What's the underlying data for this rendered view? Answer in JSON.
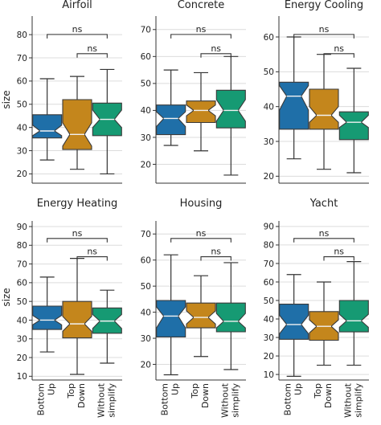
{
  "colors": {
    "bottom_up": "#1f6fa8",
    "top_down": "#c4861c",
    "without_simplify": "#169a73",
    "grid": "#dcdcdc",
    "axis": "#333333"
  },
  "ylabel": "size",
  "categories": [
    [
      "Bottom",
      "Up"
    ],
    [
      "Top",
      "Down"
    ],
    [
      "Without",
      "simplify"
    ]
  ],
  "chart_data": [
    {
      "type": "boxplot",
      "title": "Airfoil",
      "ylim": [
        16,
        88
      ],
      "yticks": [
        20,
        30,
        40,
        50,
        60,
        70,
        80
      ],
      "annotations": [
        "ns",
        "ns"
      ],
      "boxes": [
        {
          "category": "Bottom Up",
          "min": 26,
          "q1": 35.5,
          "median": 38.5,
          "q3": 45.5,
          "max": 61,
          "notch_lo": 36.5,
          "notch_hi": 41
        },
        {
          "category": "Top Down",
          "min": 22,
          "q1": 30.5,
          "median": 37,
          "q3": 52,
          "max": 62,
          "notch_lo": 32,
          "notch_hi": 42
        },
        {
          "category": "Without simplify",
          "min": 20,
          "q1": 36.5,
          "median": 43.5,
          "q3": 50.5,
          "max": 65,
          "notch_lo": 40,
          "notch_hi": 47.5
        }
      ]
    },
    {
      "type": "boxplot",
      "title": "Concrete",
      "ylim": [
        13,
        75
      ],
      "yticks": [
        20,
        30,
        40,
        50,
        60,
        70
      ],
      "annotations": [
        "ns",
        "ns"
      ],
      "boxes": [
        {
          "category": "Bottom Up",
          "min": 27,
          "q1": 31,
          "median": 37,
          "q3": 42,
          "max": 55,
          "notch_lo": 34,
          "notch_hi": 39.5
        },
        {
          "category": "Top Down",
          "min": 25,
          "q1": 35.5,
          "median": 40,
          "q3": 43.5,
          "max": 54,
          "notch_lo": 38,
          "notch_hi": 42
        },
        {
          "category": "Without simplify",
          "min": 16,
          "q1": 33.5,
          "median": 40,
          "q3": 47.5,
          "max": 60,
          "notch_lo": 36,
          "notch_hi": 44
        }
      ]
    },
    {
      "type": "boxplot",
      "title": "Energy Cooling",
      "ylim": [
        18,
        66
      ],
      "yticks": [
        20,
        30,
        40,
        50,
        60
      ],
      "annotations": [
        "ns",
        "ns"
      ],
      "boxes": [
        {
          "category": "Bottom Up",
          "min": 25,
          "q1": 33.5,
          "median": 43,
          "q3": 47,
          "max": 60,
          "notch_lo": 39,
          "notch_hi": 46
        },
        {
          "category": "Top Down",
          "min": 22,
          "q1": 33.5,
          "median": 37.5,
          "q3": 45,
          "max": 55,
          "notch_lo": 35.5,
          "notch_hi": 40
        },
        {
          "category": "Without simplify",
          "min": 21,
          "q1": 30.5,
          "median": 35.5,
          "q3": 38.5,
          "max": 51,
          "notch_lo": 34,
          "notch_hi": 37.5
        }
      ]
    },
    {
      "type": "boxplot",
      "title": "Energy Heating",
      "ylim": [
        8,
        93
      ],
      "yticks": [
        10,
        20,
        30,
        40,
        50,
        60,
        70,
        80,
        90
      ],
      "annotations": [
        "ns",
        "ns"
      ],
      "boxes": [
        {
          "category": "Bottom Up",
          "min": 23,
          "q1": 35,
          "median": 40,
          "q3": 47.5,
          "max": 63,
          "notch_lo": 37.5,
          "notch_hi": 42.5
        },
        {
          "category": "Top Down",
          "min": 11,
          "q1": 30.5,
          "median": 38,
          "q3": 50,
          "max": 73,
          "notch_lo": 34,
          "notch_hi": 42
        },
        {
          "category": "Without simplify",
          "min": 17,
          "q1": 33,
          "median": 39.5,
          "q3": 46.5,
          "max": 56,
          "notch_lo": 35.5,
          "notch_hi": 43
        }
      ]
    },
    {
      "type": "boxplot",
      "title": "Housing",
      "ylim": [
        14,
        75
      ],
      "yticks": [
        20,
        30,
        40,
        50,
        60,
        70
      ],
      "annotations": [
        "ns",
        "ns"
      ],
      "boxes": [
        {
          "category": "Bottom Up",
          "min": 16,
          "q1": 30.5,
          "median": 38.5,
          "q3": 44.5,
          "max": 62,
          "notch_lo": 34,
          "notch_hi": 42
        },
        {
          "category": "Top Down",
          "min": 23,
          "q1": 34,
          "median": 38,
          "q3": 43.5,
          "max": 54,
          "notch_lo": 35.5,
          "notch_hi": 40.5
        },
        {
          "category": "Without simplify",
          "min": 18,
          "q1": 32.5,
          "median": 36.5,
          "q3": 43.5,
          "max": 59,
          "notch_lo": 34,
          "notch_hi": 39.5
        }
      ]
    },
    {
      "type": "boxplot",
      "title": "Yacht",
      "ylim": [
        7,
        93
      ],
      "yticks": [
        10,
        20,
        30,
        40,
        50,
        60,
        70,
        80,
        90
      ],
      "annotations": [
        "ns",
        "ns"
      ],
      "boxes": [
        {
          "category": "Bottom Up",
          "min": 9,
          "q1": 29,
          "median": 37,
          "q3": 48,
          "max": 64,
          "notch_lo": 32,
          "notch_hi": 42
        },
        {
          "category": "Top Down",
          "min": 15,
          "q1": 28.5,
          "median": 36,
          "q3": 44,
          "max": 60,
          "notch_lo": 32.5,
          "notch_hi": 39.5
        },
        {
          "category": "Without simplify",
          "min": 15,
          "q1": 33,
          "median": 39,
          "q3": 50,
          "max": 71,
          "notch_lo": 35.5,
          "notch_hi": 42.5
        }
      ]
    }
  ]
}
